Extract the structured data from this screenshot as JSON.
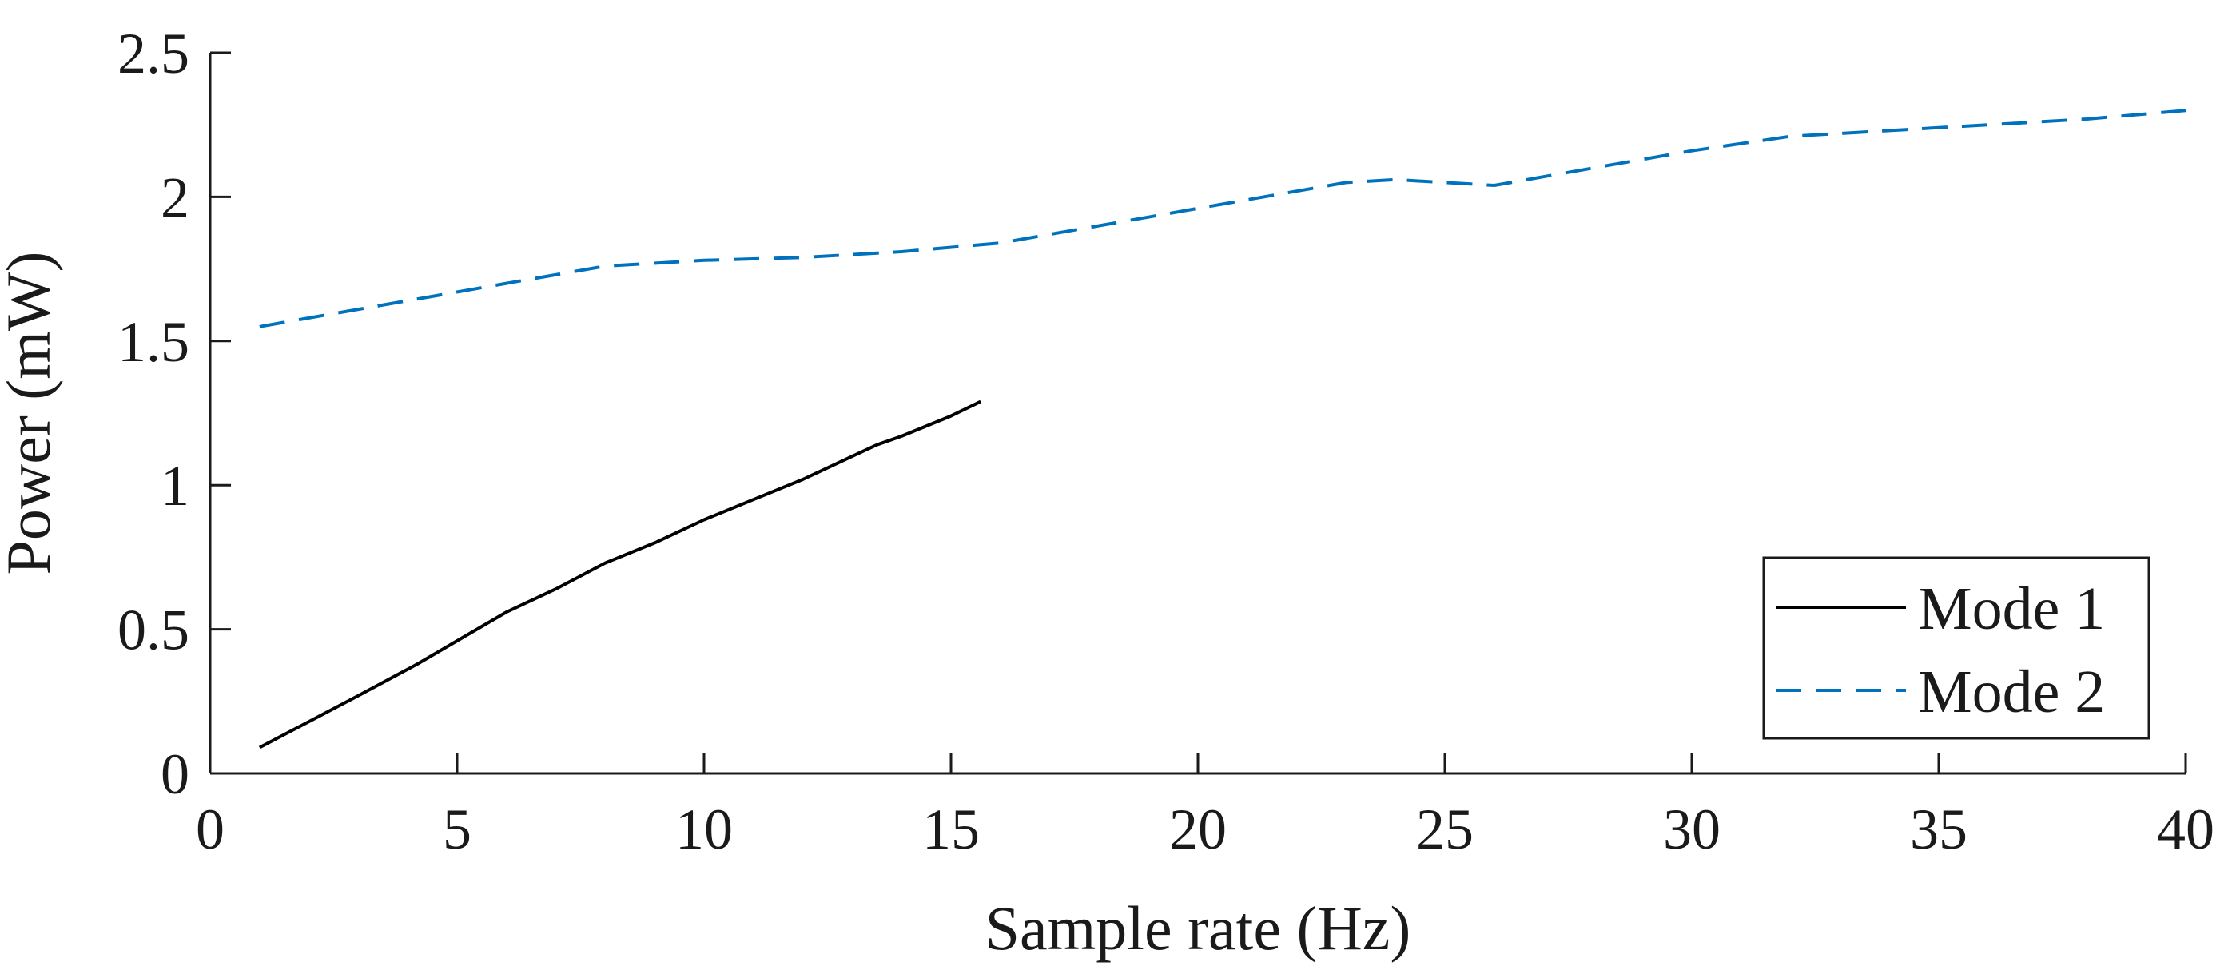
{
  "chart_data": {
    "type": "line",
    "title": "",
    "xlabel": "Sample rate (Hz)",
    "ylabel": "Power (mW)",
    "xlim": [
      0,
      40
    ],
    "ylim": [
      0,
      2.5
    ],
    "xticks": [
      0,
      5,
      10,
      15,
      20,
      25,
      30,
      35,
      40
    ],
    "yticks": [
      0,
      0.5,
      1,
      1.5,
      2,
      2.5
    ],
    "xtick_labels": [
      "0",
      "5",
      "10",
      "15",
      "20",
      "25",
      "30",
      "35",
      "40"
    ],
    "ytick_labels": [
      "0",
      "0.5",
      "1",
      "1.5",
      "2",
      "2.5"
    ],
    "grid": false,
    "legend_position": "bottom-right",
    "series": [
      {
        "name": "Mode 1",
        "color": "#000000",
        "dash": "solid",
        "x": [
          1,
          2,
          3,
          4.2,
          5,
          6,
          7,
          8,
          9,
          10,
          11,
          12,
          13,
          13.5,
          14,
          15,
          15.6
        ],
        "y": [
          0.09,
          0.18,
          0.27,
          0.38,
          0.46,
          0.56,
          0.64,
          0.73,
          0.8,
          0.88,
          0.95,
          1.02,
          1.1,
          1.14,
          1.17,
          1.24,
          1.29
        ]
      },
      {
        "name": "Mode 2",
        "color": "#0072BD",
        "dash": "dashed",
        "x": [
          1,
          2,
          4,
          6,
          8,
          10,
          12,
          14,
          16,
          18,
          20,
          22,
          23,
          24,
          26,
          28,
          30,
          32,
          34,
          36,
          38,
          40
        ],
        "y": [
          1.55,
          1.58,
          1.64,
          1.7,
          1.76,
          1.78,
          1.79,
          1.81,
          1.84,
          1.9,
          1.96,
          2.02,
          2.05,
          2.06,
          2.04,
          2.1,
          2.16,
          2.21,
          2.23,
          2.25,
          2.27,
          2.3
        ]
      }
    ]
  }
}
